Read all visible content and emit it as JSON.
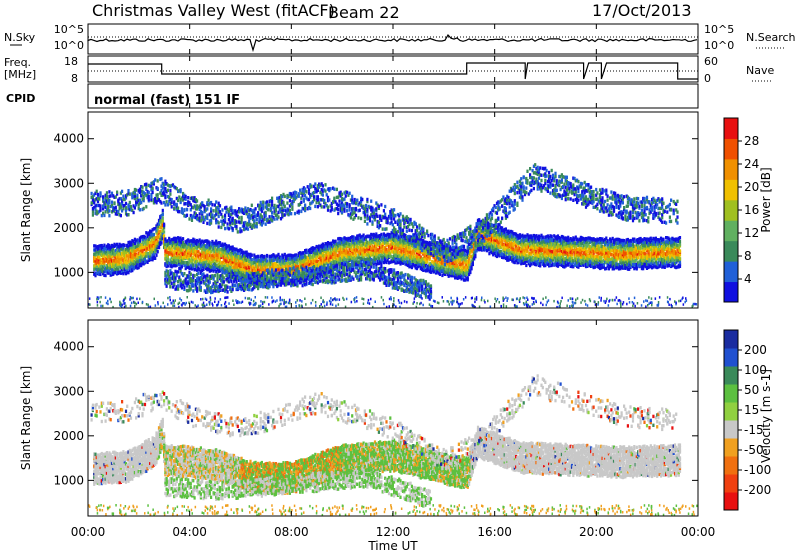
{
  "header": {
    "title": "Christmas Valley West (fitACF)",
    "beam": "Beam 22",
    "date": "17/Oct/2013"
  },
  "noise_panel": {
    "label_left": "N.Sky",
    "label_right": "N.Search",
    "ticks_left": [
      "10^5",
      "10^0"
    ],
    "ticks_right": [
      "10^5",
      "10^0"
    ]
  },
  "freq_panel": {
    "label_left_1": "Freq.",
    "label_left_2": "[MHz]",
    "label_right": "Nave",
    "ticks_left": [
      "18",
      "8"
    ],
    "ticks_right": [
      "60",
      "0"
    ]
  },
  "cpid": {
    "label": "CPID",
    "text": "normal (fast) 151 IF"
  },
  "chart_data": [
    {
      "type": "heatmap",
      "title": "",
      "xlabel": "",
      "ylabel": "Slant Range [km]",
      "x_ticks": [
        "00:00",
        "04:00",
        "08:00",
        "12:00",
        "16:00",
        "20:00",
        "00:00"
      ],
      "y_ticks": [
        "1000",
        "2000",
        "3000",
        "4000"
      ],
      "ylim": [
        200,
        4600
      ],
      "colorbar": {
        "label": "Power [dB]",
        "ticks": [
          "4",
          "8",
          "12",
          "16",
          "20",
          "24",
          "28"
        ],
        "colors": [
          "#1010e0",
          "#2060d8",
          "#3a8a5a",
          "#60b060",
          "#a0c020",
          "#f0c000",
          "#f09000",
          "#f05000",
          "#e81010"
        ]
      }
    },
    {
      "type": "heatmap",
      "title": "",
      "xlabel": "Time UT",
      "ylabel": "Slant Range [km]",
      "x_ticks": [
        "00:00",
        "04:00",
        "08:00",
        "12:00",
        "16:00",
        "20:00",
        "00:00"
      ],
      "y_ticks": [
        "1000",
        "2000",
        "3000",
        "4000"
      ],
      "ylim": [
        200,
        4600
      ],
      "colorbar": {
        "label": "Velocity [m s-1]",
        "ticks": [
          "200",
          "100",
          "50",
          "15",
          "-15",
          "-50",
          "-100",
          "-200"
        ],
        "colors": [
          "#1a2ca0",
          "#2050d0",
          "#3a8a5a",
          "#5cc040",
          "#90d040",
          "#c8c8c8",
          "#f0a020",
          "#f07010",
          "#f04010",
          "#e81010"
        ]
      }
    }
  ]
}
